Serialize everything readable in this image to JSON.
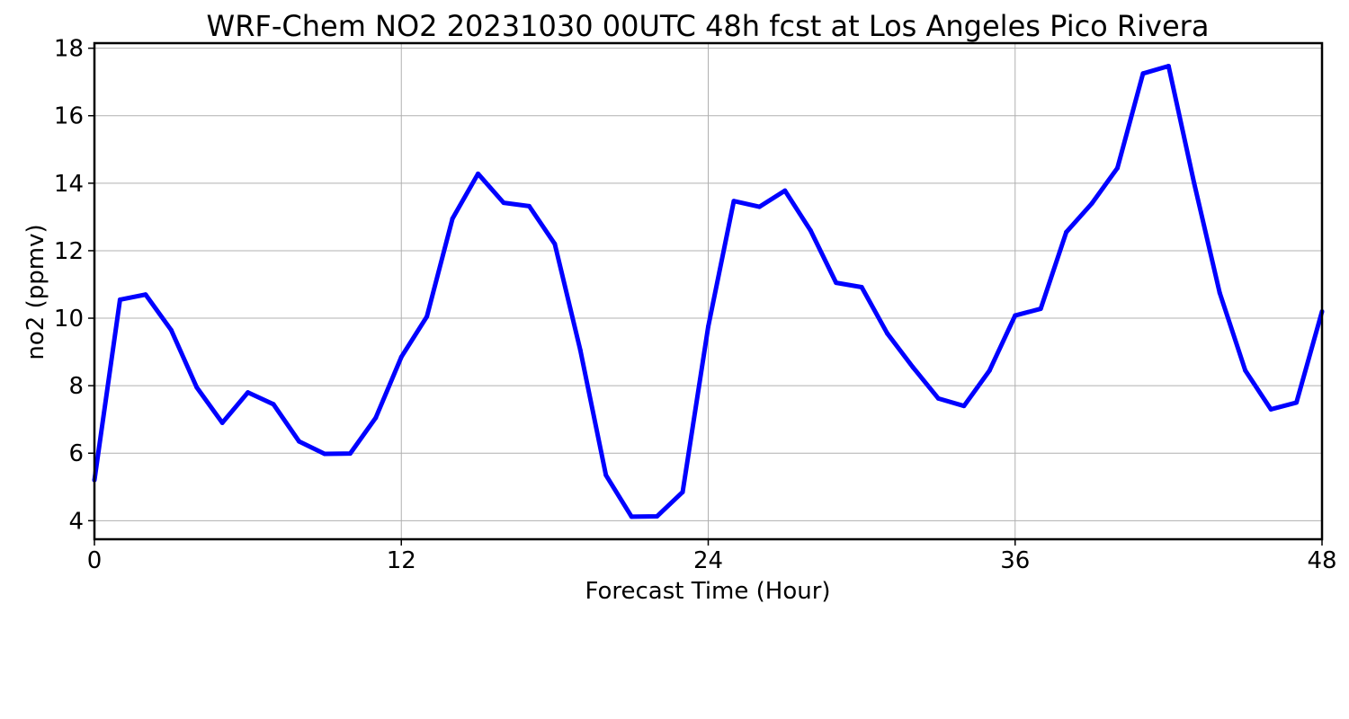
{
  "chart_data": {
    "type": "line",
    "title": "WRF-Chem NO2  20231030 00UTC 48h fcst at Los Angeles Pico Rivera",
    "xlabel": "Forecast Time (Hour)",
    "ylabel": "no2  (ppmv)",
    "xlim": [
      0,
      48
    ],
    "ylim": [
      3.45,
      18.15
    ],
    "xticks": [
      0,
      12,
      24,
      36,
      48
    ],
    "yticks": [
      4,
      6,
      8,
      10,
      12,
      14,
      16,
      18
    ],
    "grid": true,
    "line_color": "#0000ff",
    "x": [
      0,
      1,
      2,
      3,
      4,
      5,
      6,
      7,
      8,
      9,
      10,
      11,
      12,
      13,
      14,
      15,
      16,
      17,
      18,
      19,
      20,
      21,
      22,
      23,
      24,
      25,
      26,
      27,
      28,
      29,
      30,
      31,
      32,
      33,
      34,
      35,
      36,
      37,
      38,
      39,
      40,
      41,
      42,
      43,
      44,
      45,
      46,
      47,
      48
    ],
    "series": [
      {
        "values": [
          5.2,
          10.55,
          10.7,
          9.65,
          7.95,
          6.9,
          7.8,
          7.45,
          6.35,
          5.98,
          5.99,
          7.05,
          8.85,
          10.05,
          12.95,
          14.28,
          13.42,
          13.32,
          12.2,
          9.05,
          5.35,
          4.12,
          4.13,
          4.85,
          9.75,
          13.47,
          13.3,
          13.78,
          12.6,
          11.05,
          10.92,
          9.55,
          8.55,
          7.62,
          7.4,
          8.45,
          10.08,
          10.28,
          12.55,
          13.4,
          14.45,
          17.25,
          17.47,
          14.0,
          10.75,
          8.45,
          7.3,
          7.5,
          10.2
        ]
      }
    ]
  }
}
